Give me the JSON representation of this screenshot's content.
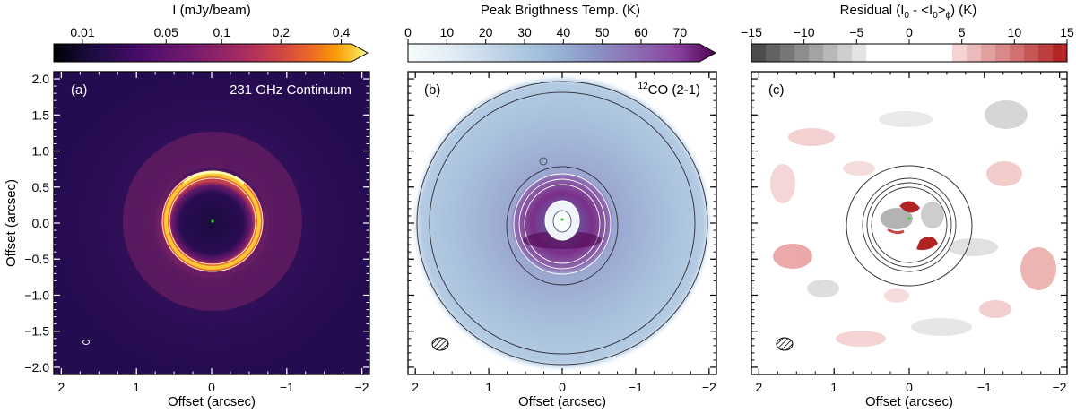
{
  "chart_data": [
    {
      "panel": "a",
      "type": "heatmap",
      "title": "231 GHz Continuum",
      "panel_label": "(a)",
      "xlabel": "Offset (arcsec)",
      "ylabel": "Offset (arcsec)",
      "xlim": [
        2.1,
        -2.1
      ],
      "ylim": [
        -2.1,
        2.1
      ],
      "xticks": [
        2,
        1,
        0,
        -1,
        -2
      ],
      "xtick_labels": [
        "2",
        "1",
        "0",
        "−1",
        "−2"
      ],
      "yticks": [
        2.0,
        1.5,
        1.0,
        0.5,
        0.0,
        -0.5,
        -1.0,
        -1.5,
        -2.0
      ],
      "ytick_labels": [
        "2.0",
        "1.5",
        "1.0",
        "0.5",
        "0.0",
        "−0.5",
        "−1.0",
        "−1.5",
        "−2.0"
      ],
      "colorbar": {
        "label": "I (mJy/beam)",
        "scale": "asinh",
        "range": [
          0,
          0.45
        ],
        "ticks": [
          0.01,
          0.05,
          0.1,
          0.2,
          0.4
        ],
        "tick_labels": [
          "0.01",
          "0.05",
          "0.1",
          "0.2",
          "0.4"
        ],
        "colormap": "inferno"
      },
      "features": {
        "ring_radius_arcsec": 0.55,
        "ring_peak_mJy": 0.42
      }
    },
    {
      "panel": "b",
      "type": "heatmap",
      "title": "CO (2-1)",
      "title_sup": "12",
      "panel_label": "(b)",
      "xlabel": "Offset (arcsec)",
      "xlim": [
        2.1,
        -2.1
      ],
      "ylim": [
        -2.1,
        2.1
      ],
      "xticks": [
        2,
        1,
        0,
        -1,
        -2
      ],
      "xtick_labels": [
        "2",
        "1",
        "0",
        "−1",
        "−2"
      ],
      "colorbar": {
        "label": "Peak Brigthness Temp. (K)",
        "range": [
          0,
          75
        ],
        "ticks": [
          0,
          10,
          20,
          30,
          40,
          50,
          60,
          70
        ],
        "tick_labels": [
          "0",
          "10",
          "20",
          "30",
          "40",
          "50",
          "60",
          "70"
        ],
        "colormap": "BuPu"
      },
      "features": {
        "disk_outer_radius_arcsec": 1.95,
        "inner_bright_radius_arcsec": 0.65
      }
    },
    {
      "panel": "c",
      "type": "heatmap",
      "title": "",
      "panel_label": "(c)",
      "xlabel": "Offset (arcsec)",
      "xlim": [
        2.1,
        -2.1
      ],
      "ylim": [
        -2.1,
        2.1
      ],
      "xticks": [
        2,
        1,
        0,
        -1,
        -2
      ],
      "xtick_labels": [
        "2",
        "1",
        "0",
        "−1",
        "−2"
      ],
      "colorbar": {
        "label_main": "Residual (I",
        "label_sub1": "0",
        "label_mid": " - <I",
        "label_sub2": "0",
        "label_mid2": ">",
        "label_sub3": "ϕ",
        "label_end": ") (K)",
        "range": [
          -15,
          15
        ],
        "ticks": [
          -15,
          -10,
          -5,
          0,
          5,
          10,
          15
        ],
        "tick_labels": [
          "−15",
          "−10",
          "−5",
          "0",
          "5",
          "10",
          "15"
        ],
        "colormap": "diverging gray-white-red, stepped"
      }
    }
  ]
}
